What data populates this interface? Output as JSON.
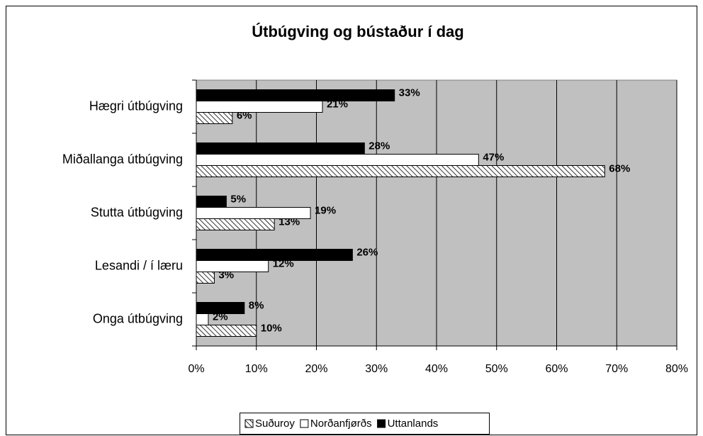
{
  "chart_data": {
    "type": "bar",
    "orientation": "horizontal",
    "title": "Útbúgving og bústaður í dag",
    "categories": [
      "Hægri útbúgving",
      "Miðallanga útbúgving",
      "Stutta útbúgving",
      "Lesandi / í læru",
      "Onga útbúgving"
    ],
    "series": [
      {
        "name": "Suðuroy",
        "color": "#000000",
        "pattern": "diagonal",
        "values": [
          6,
          68,
          13,
          3,
          10
        ],
        "value_labels": [
          "6%",
          "68%",
          "13%",
          "3%",
          "10%"
        ]
      },
      {
        "name": "Norðanfjørðs",
        "color": "#ffffff",
        "values": [
          21,
          47,
          19,
          12,
          2
        ],
        "value_labels": [
          "21%",
          "47%",
          "19%",
          "12%",
          "2%"
        ]
      },
      {
        "name": "Uttanlands",
        "color": "#000000",
        "values": [
          33,
          28,
          5,
          26,
          8
        ],
        "value_labels": [
          "33%",
          "28%",
          "5%",
          "26%",
          "8%"
        ]
      }
    ],
    "xlim": [
      0,
      80
    ],
    "xticks": [
      {
        "value": 0,
        "label": "0%"
      },
      {
        "value": 10,
        "label": "10%"
      },
      {
        "value": 20,
        "label": "20%"
      },
      {
        "value": 30,
        "label": "30%"
      },
      {
        "value": 40,
        "label": "40%"
      },
      {
        "value": 50,
        "label": "50%"
      },
      {
        "value": 60,
        "label": "60%"
      },
      {
        "value": 70,
        "label": "70%"
      },
      {
        "value": 80,
        "label": "80%"
      }
    ],
    "grid": true,
    "plot_background": "#c0c0c0",
    "legend": "bottom"
  }
}
